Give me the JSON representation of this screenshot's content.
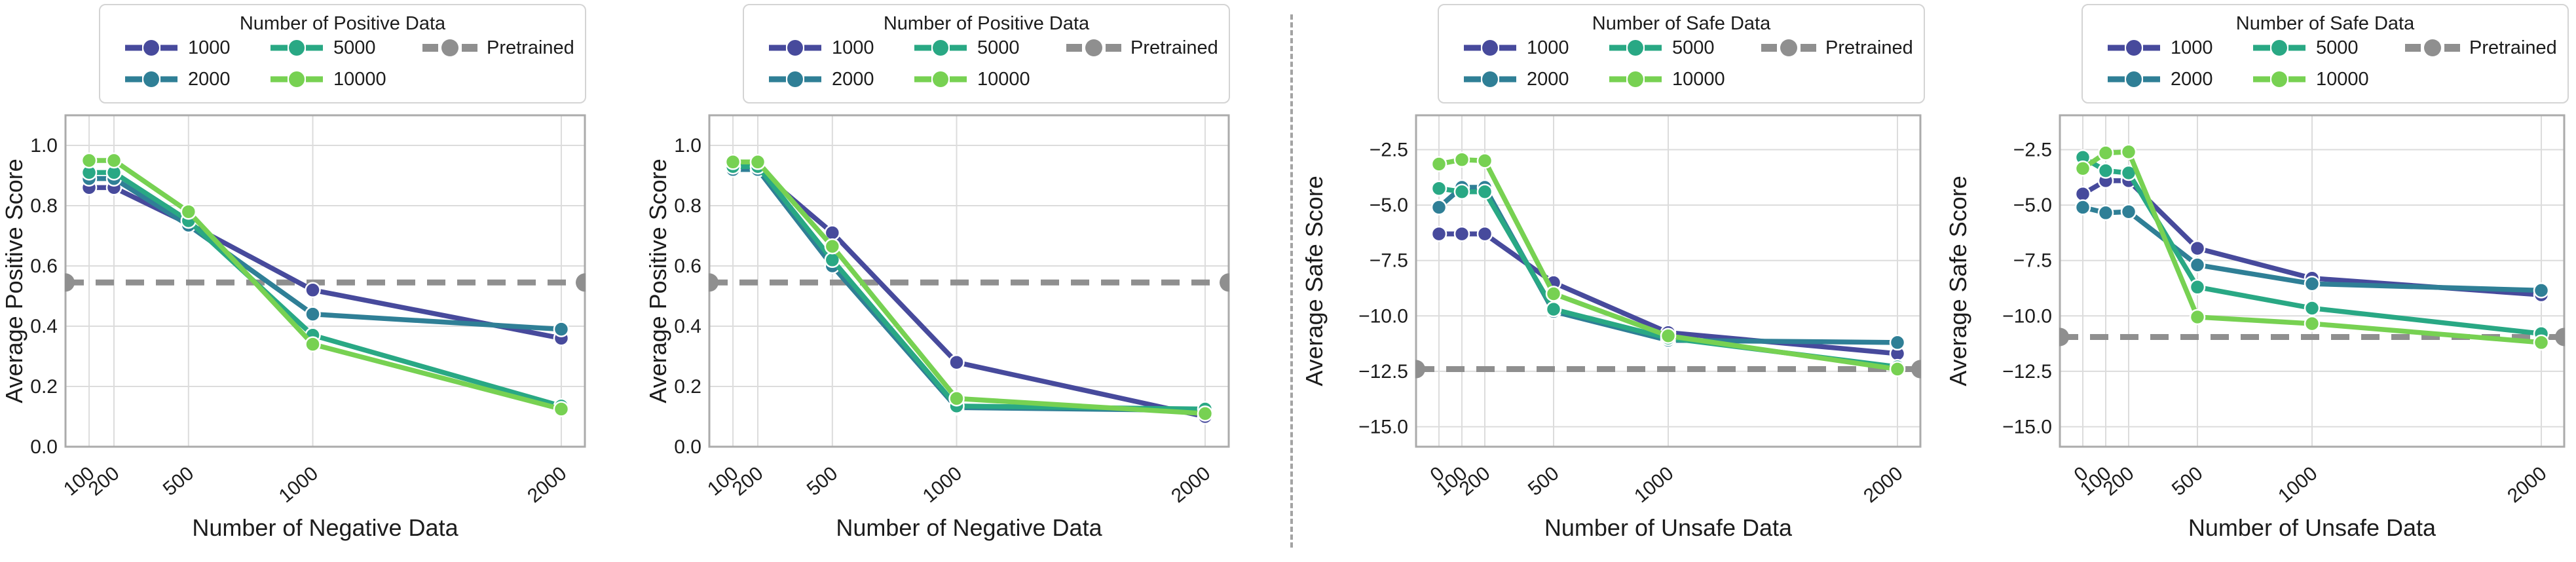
{
  "figure_colors": {
    "grid": "#dcdcdc",
    "plot_border": "#ababab",
    "divider": "#a3a3a3",
    "background": "#ffffff"
  },
  "chart_data": [
    {
      "type": "line",
      "legend_title": "Number of Positive Data",
      "xlabel": "Number of Negative Data",
      "ylabel": "Average Positive Score",
      "x": [
        100,
        200,
        500,
        1000,
        2000
      ],
      "xtick_labels": [
        "100",
        "200",
        "500",
        "1000",
        "2000"
      ],
      "ytick_values": [
        0.0,
        0.2,
        0.4,
        0.6,
        0.8,
        1.0
      ],
      "ytick_labels": [
        "0.0",
        "0.2",
        "0.4",
        "0.6",
        "0.8",
        "1.0"
      ],
      "xlim": [
        5,
        2095
      ],
      "ylim": [
        0,
        1.1
      ],
      "grid": true,
      "legend_position": "top-center",
      "series": [
        {
          "name": "1000",
          "color": "#474a9c",
          "values": [
            0.86,
            0.86,
            0.74,
            0.52,
            0.36
          ]
        },
        {
          "name": "2000",
          "color": "#2f7f96",
          "values": [
            0.89,
            0.89,
            0.735,
            0.44,
            0.39
          ]
        },
        {
          "name": "5000",
          "color": "#29a884",
          "values": [
            0.91,
            0.91,
            0.75,
            0.37,
            0.135
          ]
        },
        {
          "name": "10000",
          "color": "#77d152",
          "values": [
            0.95,
            0.95,
            0.78,
            0.34,
            0.125
          ]
        }
      ],
      "pretrained": {
        "label": "Pretrained",
        "color": "#8f8f8f",
        "value": 0.545
      }
    },
    {
      "type": "line",
      "legend_title": "Number of Positive Data",
      "xlabel": "Number of Negative Data",
      "ylabel": "Average Positive Score",
      "x": [
        100,
        200,
        500,
        1000,
        2000
      ],
      "xtick_labels": [
        "100",
        "200",
        "500",
        "1000",
        "2000"
      ],
      "ytick_values": [
        0.0,
        0.2,
        0.4,
        0.6,
        0.8,
        1.0
      ],
      "ytick_labels": [
        "0.0",
        "0.2",
        "0.4",
        "0.6",
        "0.8",
        "1.0"
      ],
      "xlim": [
        5,
        2095
      ],
      "ylim": [
        0,
        1.1
      ],
      "grid": true,
      "legend_position": "top-center",
      "series": [
        {
          "name": "1000",
          "color": "#474a9c",
          "values": [
            0.92,
            0.92,
            0.71,
            0.28,
            0.1
          ]
        },
        {
          "name": "2000",
          "color": "#2f7f96",
          "values": [
            0.92,
            0.92,
            0.6,
            0.13,
            0.12
          ]
        },
        {
          "name": "5000",
          "color": "#29a884",
          "values": [
            0.93,
            0.93,
            0.62,
            0.135,
            0.125
          ]
        },
        {
          "name": "10000",
          "color": "#77d152",
          "values": [
            0.945,
            0.945,
            0.665,
            0.16,
            0.11
          ]
        }
      ],
      "pretrained": {
        "label": "Pretrained",
        "color": "#8f8f8f",
        "value": 0.545
      }
    },
    {
      "type": "line",
      "legend_title": "Number of Safe Data",
      "xlabel": "Number of Unsafe Data",
      "ylabel": "Average Safe Score",
      "x": [
        0,
        100,
        200,
        500,
        1000,
        2000
      ],
      "xtick_labels": [
        "0",
        "100",
        "200",
        "500",
        "1000",
        "2000"
      ],
      "ytick_values": [
        -2.5,
        -5.0,
        -7.5,
        -10.0,
        -12.5,
        -15.0
      ],
      "ytick_labels": [
        "−2.5",
        "−5.0",
        "−7.5",
        "−10.0",
        "−12.5",
        "−15.0"
      ],
      "xlim": [
        -100,
        2100
      ],
      "ylim": [
        -15.9,
        -0.95
      ],
      "grid": true,
      "legend_position": "top-center",
      "series": [
        {
          "name": "1000",
          "color": "#474a9c",
          "values": [
            -6.3,
            -6.3,
            -6.3,
            -8.5,
            -10.75,
            -11.7
          ]
        },
        {
          "name": "2000",
          "color": "#2f7f96",
          "values": [
            -5.1,
            -4.2,
            -4.2,
            -9.8,
            -11.1,
            -11.2
          ]
        },
        {
          "name": "5000",
          "color": "#29a884",
          "values": [
            -4.25,
            -4.4,
            -4.4,
            -9.7,
            -11.0,
            -12.3
          ]
        },
        {
          "name": "10000",
          "color": "#77d152",
          "values": [
            -3.15,
            -2.95,
            -3.0,
            -9.0,
            -10.9,
            -12.4
          ]
        }
      ],
      "pretrained": {
        "label": "Pretrained",
        "color": "#8f8f8f",
        "value": -12.4
      }
    },
    {
      "type": "line",
      "legend_title": "Number of Safe Data",
      "xlabel": "Number of Unsafe Data",
      "ylabel": "Average Safe Score",
      "x": [
        0,
        100,
        200,
        500,
        1000,
        2000
      ],
      "xtick_labels": [
        "0",
        "100",
        "200",
        "500",
        "1000",
        "2000"
      ],
      "ytick_values": [
        -2.5,
        -5.0,
        -7.5,
        -10.0,
        -12.5,
        -15.0
      ],
      "ytick_labels": [
        "−2.5",
        "−5.0",
        "−7.5",
        "−10.0",
        "−12.5",
        "−15.0"
      ],
      "xlim": [
        -100,
        2100
      ],
      "ylim": [
        -15.9,
        -0.95
      ],
      "grid": true,
      "legend_position": "top-center",
      "series": [
        {
          "name": "1000",
          "color": "#474a9c",
          "values": [
            -4.5,
            -3.9,
            -3.9,
            -6.95,
            -8.3,
            -9.05
          ]
        },
        {
          "name": "2000",
          "color": "#2f7f96",
          "values": [
            -5.1,
            -5.35,
            -5.3,
            -7.7,
            -8.55,
            -8.85
          ]
        },
        {
          "name": "5000",
          "color": "#29a884",
          "values": [
            -2.85,
            -3.45,
            -3.55,
            -8.7,
            -9.65,
            -10.8
          ]
        },
        {
          "name": "10000",
          "color": "#77d152",
          "values": [
            -3.35,
            -2.65,
            -2.6,
            -10.05,
            -10.35,
            -11.2
          ]
        }
      ],
      "pretrained": {
        "label": "Pretrained",
        "color": "#8f8f8f",
        "value": -10.95
      }
    }
  ]
}
